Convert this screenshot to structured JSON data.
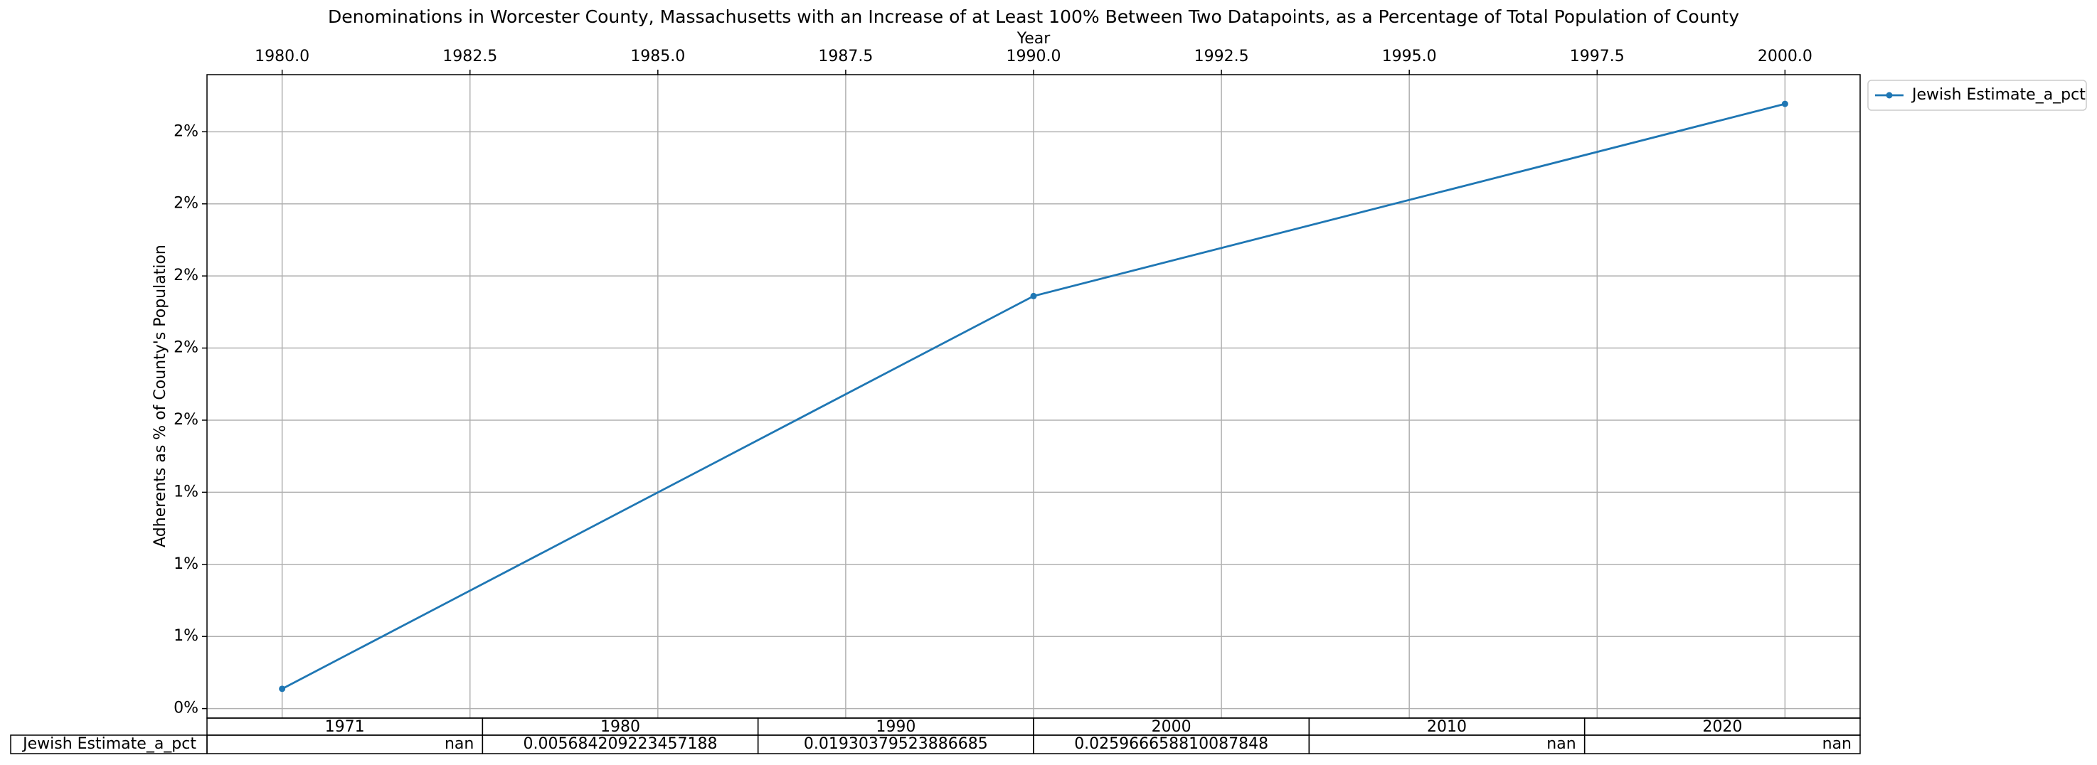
{
  "chart_data": {
    "type": "line",
    "title": "Denominations in Worcester County, Massachusetts with an Increase of at Least 100% Between Two Datapoints, as a Percentage of Total Population of County",
    "x_label": "Year",
    "y_label": "Adherents as % of County's Population",
    "x": [
      1980,
      1990,
      2000
    ],
    "series": [
      {
        "name": "Jewish Estimate_a_pct",
        "color": "#1f77b4",
        "values": [
          0.005684209223457188,
          0.01930379523886685,
          0.025966658810087848
        ]
      }
    ],
    "xlim": [
      1979,
      2001
    ],
    "xticks": [
      {
        "value": 1980,
        "label": "1980.0"
      },
      {
        "value": 1982.5,
        "label": "1982.5"
      },
      {
        "value": 1985,
        "label": "1985.0"
      },
      {
        "value": 1987.5,
        "label": "1987.5"
      },
      {
        "value": 1990,
        "label": "1990.0"
      },
      {
        "value": 1992.5,
        "label": "1992.5"
      },
      {
        "value": 1995,
        "label": "1995.0"
      },
      {
        "value": 1997.5,
        "label": "1997.5"
      },
      {
        "value": 2000,
        "label": "2000.0"
      }
    ],
    "ylim": [
      0.00467,
      0.02698
    ],
    "yticks": [
      {
        "value": 0.005,
        "label": "0%"
      },
      {
        "value": 0.0075,
        "label": "1%"
      },
      {
        "value": 0.01,
        "label": "1%"
      },
      {
        "value": 0.0125,
        "label": "1%"
      },
      {
        "value": 0.015,
        "label": "2%"
      },
      {
        "value": 0.0175,
        "label": "2%"
      },
      {
        "value": 0.02,
        "label": "2%"
      },
      {
        "value": 0.0225,
        "label": "2%"
      },
      {
        "value": 0.025,
        "label": "2%"
      }
    ],
    "grid": true,
    "legend": "outside upper right"
  },
  "table": {
    "columns": [
      "1971",
      "1980",
      "1990",
      "2000",
      "2010",
      "2020"
    ],
    "row_label": "Jewish Estimate_a_pct",
    "cells": [
      "nan",
      "0.005684209223457188",
      "0.01930379523886685",
      "0.025966658810087848",
      "nan",
      "nan"
    ]
  }
}
